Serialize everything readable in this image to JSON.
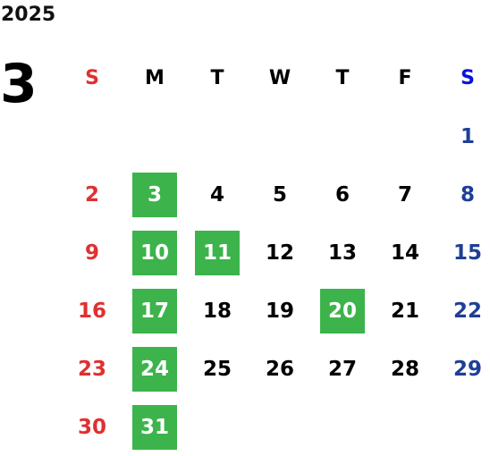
{
  "calendar": {
    "year": "2025",
    "month": "3",
    "weekday_headers": [
      "S",
      "M",
      "T",
      "W",
      "T",
      "F",
      "S"
    ],
    "first_weekday_index": 6,
    "days": [
      {
        "day": "1",
        "highlighted": false
      },
      {
        "day": "2",
        "highlighted": false
      },
      {
        "day": "3",
        "highlighted": true
      },
      {
        "day": "4",
        "highlighted": false
      },
      {
        "day": "5",
        "highlighted": false
      },
      {
        "day": "6",
        "highlighted": false
      },
      {
        "day": "7",
        "highlighted": false
      },
      {
        "day": "8",
        "highlighted": false
      },
      {
        "day": "9",
        "highlighted": false
      },
      {
        "day": "10",
        "highlighted": true
      },
      {
        "day": "11",
        "highlighted": true
      },
      {
        "day": "12",
        "highlighted": false
      },
      {
        "day": "13",
        "highlighted": false
      },
      {
        "day": "14",
        "highlighted": false
      },
      {
        "day": "15",
        "highlighted": false
      },
      {
        "day": "16",
        "highlighted": false
      },
      {
        "day": "17",
        "highlighted": true
      },
      {
        "day": "18",
        "highlighted": false
      },
      {
        "day": "19",
        "highlighted": false
      },
      {
        "day": "20",
        "highlighted": true
      },
      {
        "day": "21",
        "highlighted": false
      },
      {
        "day": "22",
        "highlighted": false
      },
      {
        "day": "23",
        "highlighted": false
      },
      {
        "day": "24",
        "highlighted": true
      },
      {
        "day": "25",
        "highlighted": false
      },
      {
        "day": "26",
        "highlighted": false
      },
      {
        "day": "27",
        "highlighted": false
      },
      {
        "day": "28",
        "highlighted": false
      },
      {
        "day": "29",
        "highlighted": false
      },
      {
        "day": "30",
        "highlighted": false
      },
      {
        "day": "31",
        "highlighted": true
      }
    ]
  },
  "colors": {
    "sunday": "#e03030",
    "saturday": "#1e3f95",
    "saturday_header": "#0a14d8",
    "highlight": "#3cb44b"
  }
}
